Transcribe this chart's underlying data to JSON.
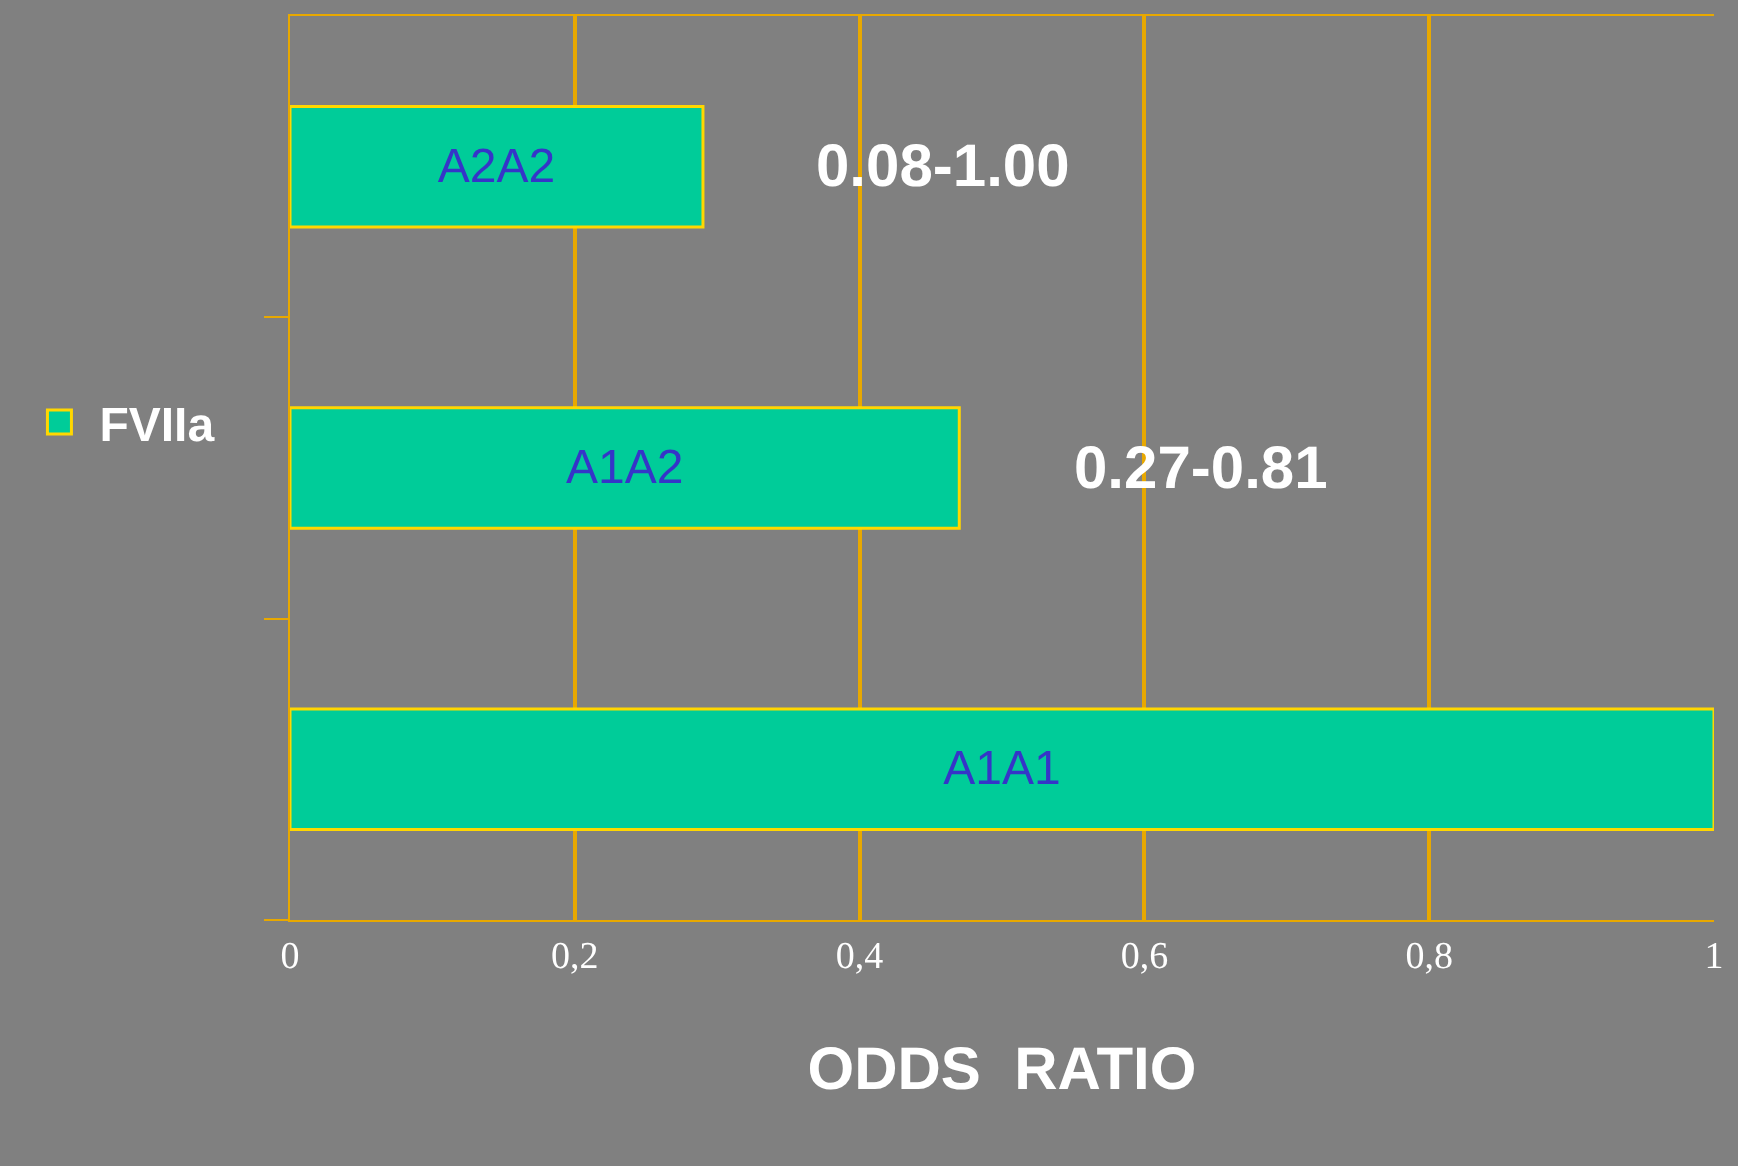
{
  "chart_data": {
    "type": "bar",
    "orientation": "horizontal",
    "categories": [
      "A2A2",
      "A1A2",
      "A1A1"
    ],
    "series": [
      {
        "name": "FVIIa",
        "color": "#00cc99",
        "values": [
          0.29,
          0.47,
          1.0
        ]
      }
    ],
    "xlim": [
      0,
      1
    ],
    "xticks": [
      {
        "value": 0,
        "label": "0"
      },
      {
        "value": 0.2,
        "label": "0,2"
      },
      {
        "value": 0.4,
        "label": "0,4"
      },
      {
        "value": 0.6,
        "label": "0,6"
      },
      {
        "value": 0.8,
        "label": "0,8"
      },
      {
        "value": 1,
        "label": "1"
      }
    ],
    "xlabel": "ODDS  RATIO",
    "grid": "x",
    "legend": "left",
    "annotations": [
      {
        "text": "0.08-1.00",
        "x": 0.29,
        "y": "A2A2"
      },
      {
        "text": "0.27-0.81",
        "x": 0.47,
        "y": "A1A2"
      }
    ]
  }
}
